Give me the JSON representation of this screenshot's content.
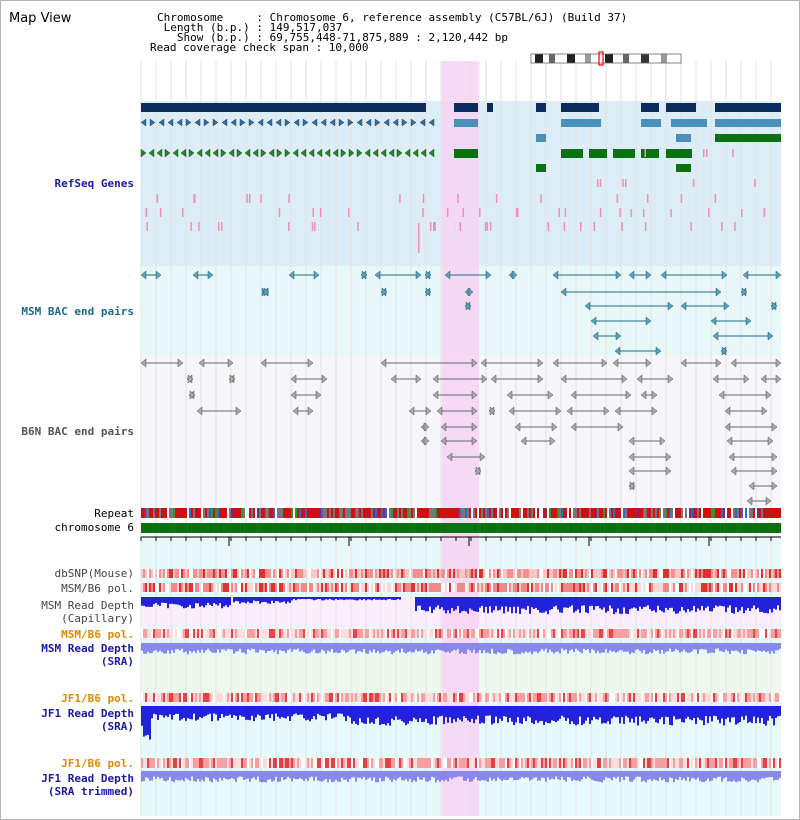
{
  "header": {
    "title": "Map View",
    "info_lines": [
      "Chromosome     : Chromosome 6, reference assembly (C57BL/6J) (Build 37)",
      " Length (b.p.) : 149,517,037",
      "   Show (b.p.) : 69,755,448-71,875,889 : 2,120,442 bp",
      "Read coverage check span : 10,000"
    ]
  },
  "tracks": {
    "refseq": {
      "label": "RefSeq Genes",
      "color": "#1a1aa6"
    },
    "msm_bac": {
      "label": "MSM BAC end pairs",
      "color": "#1f6a8a"
    },
    "b6n_bac": {
      "label": "B6N BAC end pairs",
      "color": "#555555"
    },
    "repeat": {
      "label": "Repeat"
    },
    "chrom": {
      "label": "chromosome 6"
    },
    "dbsnp": {
      "label": "dbSNP(Mouse)"
    },
    "msm_b6_pol_1": {
      "label": "MSM/B6 pol."
    },
    "msm_depth_cap": {
      "label": "MSM Read Depth\n(Capillary)"
    },
    "msm_b6_pol_2": {
      "label": "MSM/B6 pol.",
      "color": "#e08a00"
    },
    "msm_depth_sra": {
      "label": "MSM Read Depth\n(SRA)",
      "color": "#1a1aa6"
    },
    "jf1_b6_pol_1": {
      "label": "JF1/B6 pol.",
      "color": "#e08a00"
    },
    "jf1_depth_sra": {
      "label": "JF1 Read Depth\n(SRA)",
      "color": "#1a1aa6"
    },
    "jf1_b6_pol_2": {
      "label": "JF1/B6 pol.",
      "color": "#e08a00"
    },
    "jf1_depth_trim": {
      "label": "JF1 Read Depth\n(SRA trimmed)",
      "color": "#1a1aa6"
    }
  },
  "ruler": {
    "ticks": [
      "70000000",
      "70400000",
      "70800000",
      "71200000",
      "71600000"
    ]
  },
  "colors": {
    "highlight": "#f7d4f3",
    "refseq_bg": "#dcedf8",
    "bac_bg": "#e8f8f8",
    "gene_dark": "#0d2b5c",
    "gene_mid": "#4a90b8",
    "gene_green": "#0a7010",
    "depth_dark": "#2222dd",
    "depth_light": "#8888ee"
  }
}
